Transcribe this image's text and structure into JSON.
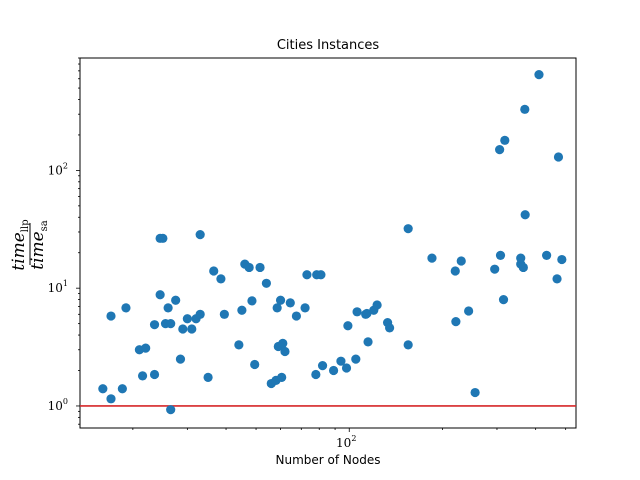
{
  "chart_data": {
    "type": "scatter",
    "title": "Cities Instances",
    "xlabel": "Number of Nodes",
    "ylabel": {
      "numerator": "time",
      "numerator_sub": "llp",
      "denominator": "time",
      "denominator_sub": "sa"
    },
    "x_scale": "log",
    "y_scale": "log",
    "xlim": [
      13.5,
      540
    ],
    "ylim": [
      0.65,
      900
    ],
    "x_ticks": [
      {
        "value": 100,
        "base": "10",
        "exp": "2"
      }
    ],
    "y_ticks": [
      {
        "value": 1,
        "base": "10",
        "exp": "0"
      },
      {
        "value": 10,
        "base": "10",
        "exp": "1"
      },
      {
        "value": 100,
        "base": "10",
        "exp": "2"
      }
    ],
    "grid": false,
    "reference_line": {
      "y": 1,
      "color": "#d62728"
    },
    "marker_color": "#1f77b4",
    "points": [
      [
        16,
        1.4
      ],
      [
        17,
        1.15
      ],
      [
        17,
        5.8
      ],
      [
        18.5,
        1.4
      ],
      [
        19,
        6.8
      ],
      [
        21,
        3.0
      ],
      [
        21.5,
        1.8
      ],
      [
        22,
        3.1
      ],
      [
        23.5,
        4.9
      ],
      [
        23.5,
        1.85
      ],
      [
        24.5,
        8.8
      ],
      [
        24.5,
        26.5
      ],
      [
        25,
        26.5
      ],
      [
        25.5,
        5.0
      ],
      [
        26,
        6.8
      ],
      [
        26.5,
        0.93
      ],
      [
        26.5,
        5.0
      ],
      [
        27.5,
        7.9
      ],
      [
        28.5,
        2.5
      ],
      [
        29,
        4.5
      ],
      [
        30,
        5.5
      ],
      [
        31,
        4.5
      ],
      [
        32,
        5.5
      ],
      [
        33,
        6.0
      ],
      [
        33,
        28.5
      ],
      [
        35,
        1.75
      ],
      [
        36.5,
        14.0
      ],
      [
        38.5,
        12.0
      ],
      [
        39.5,
        6.0
      ],
      [
        44,
        3.3
      ],
      [
        45,
        6.5
      ],
      [
        46,
        16.0
      ],
      [
        47.5,
        15.0
      ],
      [
        48.5,
        7.8
      ],
      [
        49.5,
        2.25
      ],
      [
        51.5,
        15.0
      ],
      [
        54,
        11.0
      ],
      [
        56,
        1.55
      ],
      [
        58,
        1.65
      ],
      [
        58.5,
        6.8
      ],
      [
        59,
        3.2
      ],
      [
        60,
        7.9
      ],
      [
        60.5,
        1.75
      ],
      [
        61,
        3.4
      ],
      [
        62,
        2.9
      ],
      [
        64.5,
        7.5
      ],
      [
        67.5,
        5.8
      ],
      [
        72,
        6.8
      ],
      [
        73,
        13.0
      ],
      [
        78,
        1.85
      ],
      [
        78.5,
        13.0
      ],
      [
        81,
        13.0
      ],
      [
        82,
        2.2
      ],
      [
        89,
        2.0
      ],
      [
        94,
        2.4
      ],
      [
        98,
        2.1
      ],
      [
        99,
        4.8
      ],
      [
        105,
        2.5
      ],
      [
        106,
        6.3
      ],
      [
        113,
        6.0
      ],
      [
        114,
        6.1
      ],
      [
        115,
        3.5
      ],
      [
        120,
        6.5
      ],
      [
        123,
        7.2
      ],
      [
        133,
        5.1
      ],
      [
        135,
        4.6
      ],
      [
        155,
        32.0
      ],
      [
        155,
        3.3
      ],
      [
        185,
        18.0
      ],
      [
        220,
        14.0
      ],
      [
        221,
        5.2
      ],
      [
        230,
        17.0
      ],
      [
        243,
        6.4
      ],
      [
        255,
        1.3
      ],
      [
        295,
        14.5
      ],
      [
        306,
        150.0
      ],
      [
        308,
        19.0
      ],
      [
        315,
        8.0
      ],
      [
        318,
        180.0
      ],
      [
        358,
        16.0
      ],
      [
        358,
        18.0
      ],
      [
        365,
        15.0
      ],
      [
        369,
        330.0
      ],
      [
        370,
        42.0
      ],
      [
        410,
        650.0
      ],
      [
        434,
        19.0
      ],
      [
        469,
        12.0
      ],
      [
        474,
        130.0
      ],
      [
        486,
        17.5
      ]
    ]
  }
}
